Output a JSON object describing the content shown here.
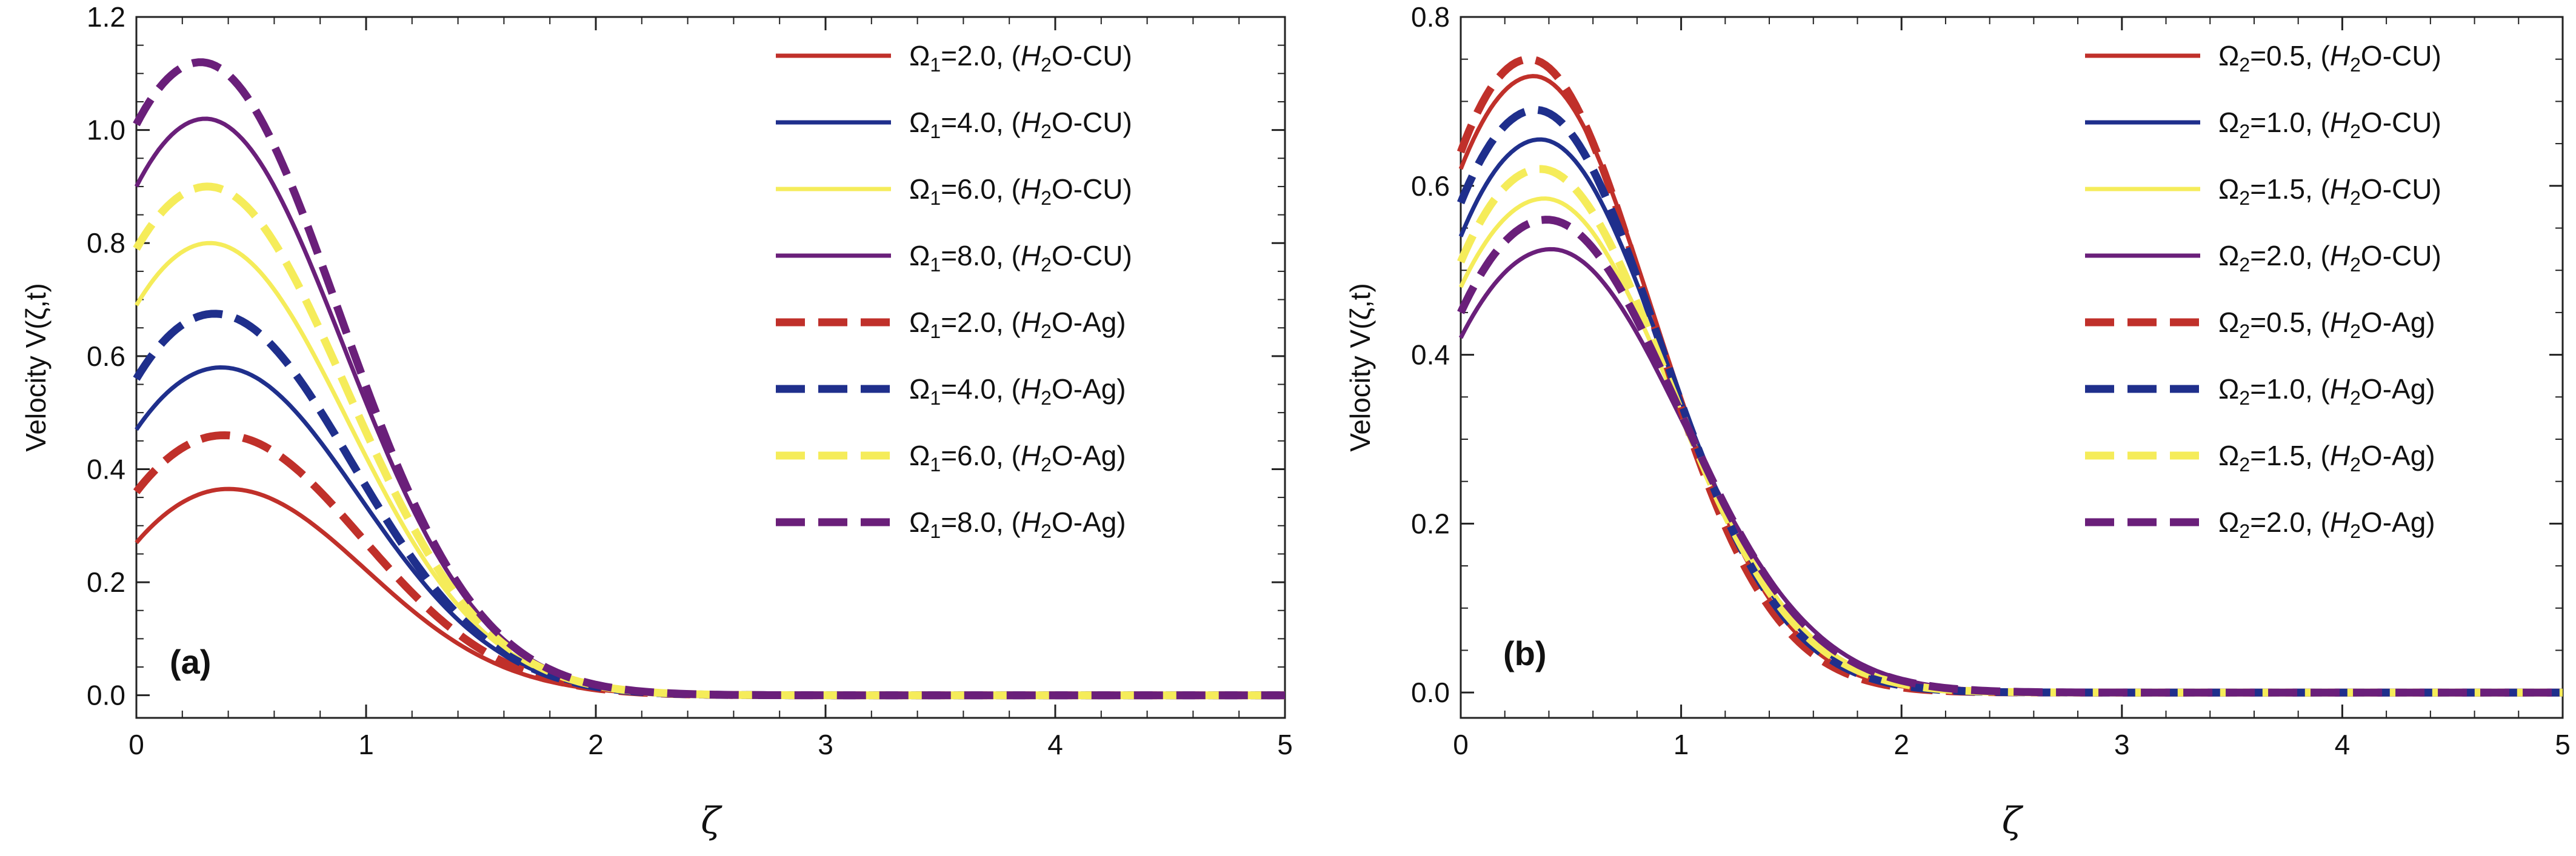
{
  "chart_data": [
    {
      "type": "line",
      "panel_label": "(a)",
      "xlabel": "ζ",
      "ylabel": "Velocity V(ζ,t)",
      "xlim": [
        0,
        5
      ],
      "ylim": [
        -0.04,
        1.2
      ],
      "xticks": [
        0,
        1,
        2,
        3,
        4,
        5
      ],
      "xtick_labels": [
        "0",
        "1",
        "2",
        "3",
        "4",
        "5"
      ],
      "yticks": [
        0.0,
        0.2,
        0.4,
        0.6,
        0.8,
        1.0,
        1.2
      ],
      "ytick_labels": [
        "0.0",
        "0.2",
        "0.4",
        "0.6",
        "0.8",
        "1.0",
        "1.2"
      ],
      "legend_position": "top-right",
      "series": [
        {
          "name": "Ω1=2.0, (H2O-CU)",
          "sym": "Ω",
          "sub": "1",
          "value": "=2.0,",
          "fluid": "O-CU",
          "color": "#c0302a",
          "style": "solid",
          "start": 0.27,
          "peak": 0.365,
          "peak_x": 0.4,
          "decay": 0.85
        },
        {
          "name": "Ω1=4.0, (H2O-CU)",
          "sym": "Ω",
          "sub": "1",
          "value": "=4.0,",
          "fluid": "O-CU",
          "color": "#1f2f8c",
          "style": "solid",
          "start": 0.47,
          "peak": 0.58,
          "peak_x": 0.37,
          "decay": 0.85
        },
        {
          "name": "Ω1=6.0, (H2O-CU)",
          "sym": "Ω",
          "sub": "1",
          "value": "=6.0,",
          "fluid": "O-CU",
          "color": "#f5ec5a",
          "style": "solid",
          "start": 0.69,
          "peak": 0.8,
          "peak_x": 0.32,
          "decay": 0.85
        },
        {
          "name": "Ω1=8.0, (H2O-CU)",
          "sym": "Ω",
          "sub": "1",
          "value": "=8.0,",
          "fluid": "O-CU",
          "color": "#6a1f7a",
          "style": "solid",
          "start": 0.9,
          "peak": 1.02,
          "peak_x": 0.3,
          "decay": 0.85
        },
        {
          "name": "Ω1=2.0, (H2O-Ag)",
          "sym": "Ω",
          "sub": "1",
          "value": "=2.0,",
          "fluid": "O-Ag",
          "color": "#c0302a",
          "style": "dashed",
          "start": 0.36,
          "peak": 0.46,
          "peak_x": 0.38,
          "decay": 0.85
        },
        {
          "name": "Ω1=4.0, (H2O-Ag)",
          "sym": "Ω",
          "sub": "1",
          "value": "=4.0,",
          "fluid": "O-Ag",
          "color": "#1f2f8c",
          "style": "dashed",
          "start": 0.56,
          "peak": 0.675,
          "peak_x": 0.34,
          "decay": 0.85
        },
        {
          "name": "Ω1=6.0, (H2O-Ag)",
          "sym": "Ω",
          "sub": "1",
          "value": "=6.0,",
          "fluid": "O-Ag",
          "color": "#f5ec5a",
          "style": "dashed",
          "start": 0.79,
          "peak": 0.9,
          "peak_x": 0.31,
          "decay": 0.85
        },
        {
          "name": "Ω1=8.0, (H2O-Ag)",
          "sym": "Ω",
          "sub": "1",
          "value": "=8.0,",
          "fluid": "O-Ag",
          "color": "#6a1f7a",
          "style": "dashed",
          "start": 1.01,
          "peak": 1.12,
          "peak_x": 0.28,
          "decay": 0.85
        }
      ]
    },
    {
      "type": "line",
      "panel_label": "(b)",
      "xlabel": "ζ",
      "ylabel": "Velocity V(ζ,t)",
      "xlim": [
        0,
        5
      ],
      "ylim": [
        -0.03,
        0.8
      ],
      "xticks": [
        0,
        1,
        2,
        3,
        4,
        5
      ],
      "xtick_labels": [
        "0",
        "1",
        "2",
        "3",
        "4",
        "5"
      ],
      "yticks": [
        0.0,
        0.2,
        0.4,
        0.6,
        0.8
      ],
      "ytick_labels": [
        "0.0",
        "0.2",
        "0.4",
        "0.6",
        "0.8"
      ],
      "legend_position": "top-right",
      "series": [
        {
          "name": "Ω2=0.5, (H2O-CU)",
          "sym": "Ω",
          "sub": "2",
          "value": "=0.5,",
          "fluid": "O-CU",
          "color": "#c0302a",
          "style": "solid",
          "start": 0.62,
          "peak": 0.73,
          "peak_x": 0.33,
          "decay": 0.78
        },
        {
          "name": "Ω2=1.0, (H2O-CU)",
          "sym": "Ω",
          "sub": "2",
          "value": "=1.0,",
          "fluid": "O-CU",
          "color": "#1f2f8c",
          "style": "solid",
          "start": 0.54,
          "peak": 0.655,
          "peak_x": 0.36,
          "decay": 0.8
        },
        {
          "name": "Ω2=1.5, (H2O-CU)",
          "sym": "Ω",
          "sub": "2",
          "value": "=1.5,",
          "fluid": "O-CU",
          "color": "#f5ec5a",
          "style": "solid",
          "start": 0.48,
          "peak": 0.585,
          "peak_x": 0.38,
          "decay": 0.82
        },
        {
          "name": "Ω2=2.0, (H2O-CU)",
          "sym": "Ω",
          "sub": "2",
          "value": "=2.0,",
          "fluid": "O-CU",
          "color": "#6a1f7a",
          "style": "solid",
          "start": 0.42,
          "peak": 0.525,
          "peak_x": 0.41,
          "decay": 0.85
        },
        {
          "name": "Ω2=0.5, (H2O-Ag)",
          "sym": "Ω",
          "sub": "2",
          "value": "=0.5,",
          "fluid": "O-Ag",
          "color": "#c0302a",
          "style": "dashed",
          "start": 0.64,
          "peak": 0.75,
          "peak_x": 0.31,
          "decay": 0.77
        },
        {
          "name": "Ω2=1.0, (H2O-Ag)",
          "sym": "Ω",
          "sub": "2",
          "value": "=1.0,",
          "fluid": "O-Ag",
          "color": "#1f2f8c",
          "style": "dashed",
          "start": 0.58,
          "peak": 0.69,
          "peak_x": 0.34,
          "decay": 0.79
        },
        {
          "name": "Ω2=1.5, (H2O-Ag)",
          "sym": "Ω",
          "sub": "2",
          "value": "=1.5,",
          "fluid": "O-Ag",
          "color": "#f5ec5a",
          "style": "dashed",
          "start": 0.51,
          "peak": 0.62,
          "peak_x": 0.36,
          "decay": 0.81
        },
        {
          "name": "Ω2=2.0, (H2O-Ag)",
          "sym": "Ω",
          "sub": "2",
          "value": "=2.0,",
          "fluid": "O-Ag",
          "color": "#6a1f7a",
          "style": "dashed",
          "start": 0.45,
          "peak": 0.56,
          "peak_x": 0.39,
          "decay": 0.84
        }
      ]
    }
  ]
}
